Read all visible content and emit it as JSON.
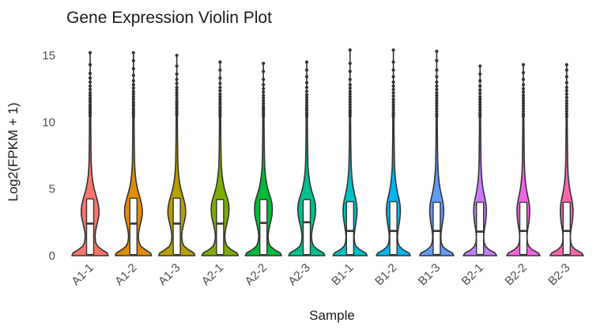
{
  "chart_data": {
    "type": "violin",
    "title": "Gene Expression Violin Plot",
    "xlabel": "Sample",
    "ylabel": "Log2(FPKM + 1)",
    "ylim": [
      0,
      15.5
    ],
    "yticks": [
      0,
      5,
      10,
      15
    ],
    "grid": "off",
    "legend": "none",
    "categories": [
      "A1-1",
      "A1-2",
      "A1-3",
      "A2-1",
      "A2-2",
      "A2-3",
      "B1-1",
      "B1-2",
      "B1-3",
      "B2-1",
      "B2-2",
      "B2-3"
    ],
    "styles": {
      "background": "#ffffff",
      "outline_color": "#333333",
      "box_fill": "#ffffff",
      "point_color": "#333333",
      "tick_label_color": "#4d4d4d",
      "title_color": "#1a1a1a"
    },
    "profiles": {
      "A1": [
        [
          0,
          0.85
        ],
        [
          0.2,
          0.8
        ],
        [
          0.45,
          0.55
        ],
        [
          0.7,
          0.35
        ],
        [
          1.0,
          0.26
        ],
        [
          1.4,
          0.23
        ],
        [
          1.8,
          0.25
        ],
        [
          2.2,
          0.3
        ],
        [
          2.6,
          0.36
        ],
        [
          3.0,
          0.41
        ],
        [
          3.4,
          0.42
        ],
        [
          3.8,
          0.39
        ],
        [
          4.2,
          0.33
        ],
        [
          4.6,
          0.26
        ],
        [
          5.0,
          0.19
        ],
        [
          5.5,
          0.13
        ],
        [
          6.0,
          0.09
        ],
        [
          6.5,
          0.065
        ],
        [
          7.0,
          0.05
        ],
        [
          8.0,
          0.04
        ],
        [
          9.0,
          0.033
        ],
        [
          10.0,
          0.028
        ],
        [
          10.4,
          0.025
        ]
      ],
      "A2": [
        [
          0,
          0.85
        ],
        [
          0.2,
          0.79
        ],
        [
          0.45,
          0.52
        ],
        [
          0.7,
          0.33
        ],
        [
          1.0,
          0.25
        ],
        [
          1.4,
          0.22
        ],
        [
          1.8,
          0.24
        ],
        [
          2.2,
          0.29
        ],
        [
          2.6,
          0.35
        ],
        [
          3.0,
          0.4
        ],
        [
          3.5,
          0.42
        ],
        [
          3.9,
          0.4
        ],
        [
          4.3,
          0.34
        ],
        [
          4.7,
          0.26
        ],
        [
          5.1,
          0.19
        ],
        [
          5.6,
          0.13
        ],
        [
          6.1,
          0.088
        ],
        [
          6.6,
          0.062
        ],
        [
          7.1,
          0.05
        ],
        [
          8.0,
          0.04
        ],
        [
          9.0,
          0.033
        ],
        [
          10.0,
          0.028
        ],
        [
          10.4,
          0.025
        ]
      ],
      "B1": [
        [
          0,
          0.8
        ],
        [
          0.2,
          0.73
        ],
        [
          0.45,
          0.45
        ],
        [
          0.7,
          0.28
        ],
        [
          1.0,
          0.21
        ],
        [
          1.4,
          0.19
        ],
        [
          1.8,
          0.21
        ],
        [
          2.2,
          0.25
        ],
        [
          2.6,
          0.29
        ],
        [
          3.0,
          0.32
        ],
        [
          3.4,
          0.33
        ],
        [
          3.8,
          0.31
        ],
        [
          4.2,
          0.27
        ],
        [
          4.6,
          0.21
        ],
        [
          5.0,
          0.16
        ],
        [
          5.5,
          0.11
        ],
        [
          6.0,
          0.08
        ],
        [
          6.5,
          0.058
        ],
        [
          7.0,
          0.047
        ],
        [
          8.0,
          0.038
        ],
        [
          9.0,
          0.031
        ],
        [
          10.0,
          0.027
        ],
        [
          10.4,
          0.024
        ]
      ],
      "B2": [
        [
          0,
          0.78
        ],
        [
          0.2,
          0.7
        ],
        [
          0.45,
          0.42
        ],
        [
          0.7,
          0.26
        ],
        [
          1.0,
          0.19
        ],
        [
          1.4,
          0.17
        ],
        [
          1.8,
          0.19
        ],
        [
          2.2,
          0.23
        ],
        [
          2.6,
          0.27
        ],
        [
          3.0,
          0.29
        ],
        [
          3.4,
          0.3
        ],
        [
          3.8,
          0.28
        ],
        [
          4.2,
          0.24
        ],
        [
          4.6,
          0.19
        ],
        [
          5.0,
          0.14
        ],
        [
          5.5,
          0.1
        ],
        [
          6.0,
          0.072
        ],
        [
          6.5,
          0.055
        ],
        [
          7.0,
          0.045
        ],
        [
          8.0,
          0.036
        ],
        [
          9.0,
          0.03
        ],
        [
          10.0,
          0.026
        ],
        [
          10.4,
          0.023
        ]
      ]
    },
    "violins": [
      {
        "label": "A1-1",
        "color": "#F8766D",
        "profile": "A1",
        "q1": 0.08,
        "median": 2.4,
        "q3": 4.25,
        "whisker_top": 15.2,
        "outliers": [
          10.45,
          10.6,
          10.72,
          10.85,
          11.0,
          11.15,
          11.3,
          11.5,
          11.65,
          11.8,
          12.0,
          12.2,
          12.45,
          12.7,
          13.0,
          13.3,
          13.65,
          14.3,
          15.2
        ]
      },
      {
        "label": "A1-2",
        "color": "#DE8C00",
        "profile": "A1",
        "q1": 0.08,
        "median": 2.4,
        "q3": 4.3,
        "whisker_top": 15.2,
        "outliers": [
          10.4,
          10.55,
          10.7,
          10.85,
          11.0,
          11.2,
          11.35,
          11.5,
          11.7,
          11.9,
          12.1,
          12.3,
          12.55,
          12.8,
          13.1,
          13.5,
          14.0,
          14.6,
          15.2
        ]
      },
      {
        "label": "A1-3",
        "color": "#B79F00",
        "profile": "A1",
        "q1": 0.08,
        "median": 2.4,
        "q3": 4.3,
        "whisker_top": 15.0,
        "outliers": [
          10.5,
          10.65,
          10.8,
          10.95,
          11.1,
          11.3,
          11.45,
          11.6,
          11.8,
          12.0,
          12.2,
          12.4,
          12.6,
          12.9,
          13.2,
          13.6,
          14.2,
          15.0
        ]
      },
      {
        "label": "A2-1",
        "color": "#7CAE00",
        "profile": "A2",
        "q1": 0.08,
        "median": 2.4,
        "q3": 4.2,
        "whisker_top": 14.5,
        "outliers": [
          10.4,
          10.55,
          10.7,
          10.85,
          11.0,
          11.15,
          11.35,
          11.5,
          11.7,
          11.9,
          12.1,
          12.35,
          12.6,
          12.9,
          13.3,
          13.9,
          14.5
        ]
      },
      {
        "label": "A2-2",
        "color": "#00BA38",
        "profile": "A2",
        "q1": 0.08,
        "median": 2.45,
        "q3": 4.2,
        "whisker_top": 14.4,
        "outliers": [
          10.45,
          10.6,
          10.75,
          10.9,
          11.05,
          11.2,
          11.4,
          11.6,
          11.8,
          12.0,
          12.25,
          12.5,
          12.8,
          13.2,
          13.8,
          14.4
        ]
      },
      {
        "label": "A2-3",
        "color": "#00C08B",
        "profile": "A2",
        "q1": 0.08,
        "median": 2.5,
        "q3": 4.2,
        "whisker_top": 14.5,
        "outliers": [
          10.4,
          10.55,
          10.7,
          10.9,
          11.05,
          11.25,
          11.45,
          11.65,
          11.85,
          12.05,
          12.3,
          12.6,
          12.95,
          13.4,
          13.9,
          14.5
        ]
      },
      {
        "label": "B1-1",
        "color": "#00BFC4",
        "profile": "B1",
        "q1": 0.08,
        "median": 1.85,
        "q3": 4.05,
        "whisker_top": 15.4,
        "outliers": [
          10.45,
          10.6,
          10.75,
          10.9,
          11.1,
          11.3,
          11.5,
          11.7,
          11.9,
          12.1,
          12.3,
          12.55,
          12.8,
          13.2,
          13.8,
          14.4,
          15.4
        ]
      },
      {
        "label": "B1-2",
        "color": "#00B4F0",
        "profile": "B1",
        "q1": 0.08,
        "median": 1.85,
        "q3": 4.05,
        "whisker_top": 15.4,
        "outliers": [
          10.4,
          10.55,
          10.7,
          10.9,
          11.1,
          11.3,
          11.5,
          11.7,
          11.95,
          12.2,
          12.45,
          12.7,
          13.0,
          13.4,
          13.9,
          14.5,
          15.4
        ]
      },
      {
        "label": "B1-3",
        "color": "#619CFF",
        "profile": "B1",
        "q1": 0.08,
        "median": 1.85,
        "q3": 4.0,
        "whisker_top": 15.3,
        "outliers": [
          10.45,
          10.6,
          10.8,
          11.0,
          11.2,
          11.4,
          11.6,
          11.8,
          12.0,
          12.2,
          12.45,
          12.7,
          13.0,
          13.4,
          13.9,
          14.6,
          15.3
        ]
      },
      {
        "label": "B2-1",
        "color": "#C77CFF",
        "profile": "B2",
        "q1": 0.08,
        "median": 1.8,
        "q3": 4.0,
        "whisker_top": 14.2,
        "outliers": [
          10.4,
          10.55,
          10.7,
          10.9,
          11.1,
          11.3,
          11.5,
          11.7,
          11.9,
          12.15,
          12.4,
          12.7,
          13.1,
          13.6,
          14.2
        ]
      },
      {
        "label": "B2-2",
        "color": "#F564E3",
        "profile": "B2",
        "q1": 0.08,
        "median": 1.85,
        "q3": 4.0,
        "whisker_top": 14.3,
        "outliers": [
          10.45,
          10.6,
          10.8,
          11.0,
          11.2,
          11.4,
          11.6,
          11.8,
          12.0,
          12.25,
          12.5,
          12.8,
          13.2,
          13.7,
          14.3
        ]
      },
      {
        "label": "B2-3",
        "color": "#FF64B0",
        "profile": "B2",
        "q1": 0.08,
        "median": 1.85,
        "q3": 4.0,
        "whisker_top": 14.3,
        "outliers": [
          10.4,
          10.6,
          10.8,
          11.0,
          11.2,
          11.4,
          11.6,
          11.85,
          12.1,
          12.35,
          12.6,
          12.95,
          13.4,
          13.9,
          14.3
        ]
      }
    ]
  }
}
